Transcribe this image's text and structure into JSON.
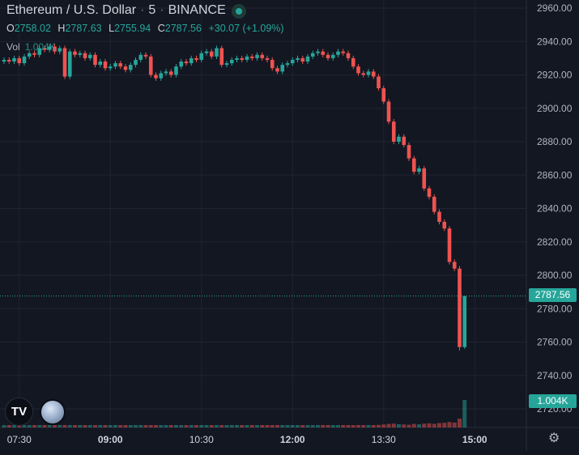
{
  "header": {
    "symbol": "Ethereum / U.S. Dollar",
    "interval": "5",
    "exchange": "BINANCE"
  },
  "ohlc": {
    "o_label": "O",
    "o": "2758.02",
    "h_label": "H",
    "h": "2787.63",
    "l_label": "L",
    "l": "2755.94",
    "c_label": "C",
    "c": "2787.56",
    "change": "+30.07 (+1.09%)"
  },
  "volume": {
    "label": "Vol",
    "value": "1.004K"
  },
  "price_tag": "2787.56",
  "volume_tag": "1.004K",
  "colors": {
    "up": "#26a69a",
    "down": "#ef5350",
    "background": "#131722",
    "grid": "#1f2430"
  },
  "icons": {
    "logo": "tradingview-logo-icon",
    "avatar": "moon-avatar-icon",
    "settings": "gear-icon"
  },
  "chart_data": {
    "type": "candlestick",
    "title": "Ethereum / U.S. Dollar",
    "y_ticks": [
      2720,
      2740,
      2760,
      2780,
      2800,
      2820,
      2840,
      2860,
      2880,
      2900,
      2920,
      2940,
      2960
    ],
    "y_tick_labels": [
      "2720.00",
      "2740.00",
      "2760.00",
      "2780.00",
      "2800.00",
      "2820.00",
      "2840.00",
      "2860.00",
      "2880.00",
      "2900.00",
      "2920.00",
      "2940.00",
      "2960.00"
    ],
    "x_tick_labels": [
      {
        "label": "07:30",
        "bold": false,
        "index": 3
      },
      {
        "label": "09:00",
        "bold": true,
        "index": 21
      },
      {
        "label": "10:30",
        "bold": false,
        "index": 39
      },
      {
        "label": "12:00",
        "bold": true,
        "index": 57
      },
      {
        "label": "13:30",
        "bold": false,
        "index": 75
      },
      {
        "label": "15:00",
        "bold": true,
        "index": 93
      }
    ],
    "last_price": 2787.56,
    "closes": [
      2929,
      2928,
      2930,
      2927,
      2931,
      2933,
      2932,
      2936,
      2935,
      2937,
      2934,
      2936,
      2919,
      2934,
      2932,
      2933,
      2930,
      2932,
      2926,
      2928,
      2924,
      2925,
      2927,
      2925,
      2923,
      2926,
      2929,
      2932,
      2931,
      2920,
      2918,
      2921,
      2922,
      2920,
      2925,
      2928,
      2927,
      2930,
      2929,
      2933,
      2934,
      2931,
      2936,
      2926,
      2927,
      2929,
      2930,
      2929,
      2931,
      2930,
      2932,
      2930,
      2929,
      2924,
      2922,
      2926,
      2927,
      2929,
      2930,
      2928,
      2931,
      2933,
      2934,
      2932,
      2930,
      2932,
      2934,
      2933,
      2930,
      2925,
      2921,
      2920,
      2922,
      2919,
      2912,
      2904,
      2892,
      2880,
      2883,
      2878,
      2870,
      2862,
      2864,
      2852,
      2847,
      2838,
      2832,
      2828,
      2808,
      2804,
      2757,
      2787.56
    ],
    "volumes": [
      60,
      55,
      50,
      48,
      52,
      45,
      50,
      55,
      48,
      52,
      50,
      48,
      90,
      70,
      55,
      50,
      52,
      48,
      60,
      50,
      55,
      50,
      45,
      48,
      52,
      50,
      55,
      60,
      58,
      75,
      70,
      55,
      50,
      52,
      60,
      55,
      50,
      48,
      52,
      70,
      60,
      55,
      80,
      75,
      55,
      50,
      52,
      48,
      50,
      55,
      52,
      50,
      48,
      70,
      65,
      55,
      50,
      52,
      50,
      48,
      55,
      60,
      50,
      52,
      50,
      48,
      52,
      50,
      60,
      75,
      80,
      70,
      75,
      80,
      95,
      110,
      130,
      140,
      120,
      110,
      100,
      130,
      115,
      140,
      150,
      135,
      160,
      170,
      200,
      180,
      320,
      1004
    ]
  }
}
